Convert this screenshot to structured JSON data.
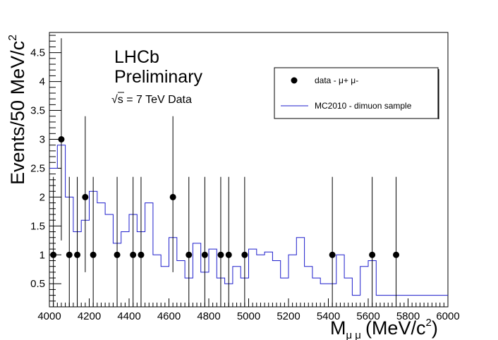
{
  "chart_data": {
    "type": "scatter",
    "title": "",
    "xlabel": "M_μμ (MeV/c²)",
    "xlabel_main": "M",
    "xlabel_sub": "μ μ",
    "xlabel_units": "(MeV/c",
    "xlabel_units_sup": "2",
    "xlabel_units_close": ")",
    "ylabel": "Events/50 MeV/c²",
    "ylabel_main": "Events/50 MeV/c",
    "ylabel_sup": "2",
    "xlim": [
      4000,
      6000
    ],
    "ylim": [
      0.1,
      4.85
    ],
    "xticks": [
      4000,
      4200,
      4400,
      4600,
      4800,
      5000,
      5200,
      5400,
      5600,
      5800,
      6000
    ],
    "yticks": [
      0.5,
      1,
      1.5,
      2,
      2.5,
      3,
      3.5,
      4,
      4.5
    ],
    "ytick_labels": [
      "0.5",
      "1",
      "1.5",
      "2",
      "2.5",
      "3",
      "3.5",
      "4",
      "4.5"
    ],
    "annotations": {
      "line1": "LHCb",
      "line2": "Preliminary",
      "energy_sqrt": "√",
      "energy_s": "s",
      "energy_text": " = 7 TeV Data"
    },
    "legend_position": "top-right",
    "series": [
      {
        "name": "data - μ+ μ-",
        "kind": "points_with_errors",
        "color": "#000000",
        "points": [
          {
            "x": 4020,
            "y": 1,
            "ylo": 0,
            "yhi": 2.35
          },
          {
            "x": 4060,
            "y": 3,
            "ylo": 1.25,
            "yhi": 4.75
          },
          {
            "x": 4100,
            "y": 1,
            "ylo": 0,
            "yhi": 2.35
          },
          {
            "x": 4140,
            "y": 1,
            "ylo": 0,
            "yhi": 2.35
          },
          {
            "x": 4180,
            "y": 2,
            "ylo": 0.7,
            "yhi": 3.4
          },
          {
            "x": 4220,
            "y": 1,
            "ylo": 0,
            "yhi": 2.35
          },
          {
            "x": 4340,
            "y": 1,
            "ylo": 0,
            "yhi": 2.35
          },
          {
            "x": 4420,
            "y": 1,
            "ylo": 0,
            "yhi": 2.35
          },
          {
            "x": 4460,
            "y": 1,
            "ylo": 0,
            "yhi": 2.35
          },
          {
            "x": 4620,
            "y": 2,
            "ylo": 0.7,
            "yhi": 3.4
          },
          {
            "x": 4700,
            "y": 1,
            "ylo": 0,
            "yhi": 2.35
          },
          {
            "x": 4780,
            "y": 1,
            "ylo": 0,
            "yhi": 2.35
          },
          {
            "x": 4860,
            "y": 1,
            "ylo": 0,
            "yhi": 2.35
          },
          {
            "x": 4900,
            "y": 1,
            "ylo": 0,
            "yhi": 2.35
          },
          {
            "x": 4980,
            "y": 1,
            "ylo": 0,
            "yhi": 2.35
          },
          {
            "x": 5420,
            "y": 1,
            "ylo": 0,
            "yhi": 2.35
          },
          {
            "x": 5620,
            "y": 1,
            "ylo": 0,
            "yhi": 2.35
          },
          {
            "x": 5740,
            "y": 1,
            "ylo": 0,
            "yhi": 2.35
          }
        ]
      },
      {
        "name": "MC2010 - dimuon sample",
        "kind": "step_histogram",
        "color": "#1f1fcc",
        "bin_width": 40,
        "bin_start": 4000,
        "values": [
          2.5,
          2.9,
          2.0,
          1.4,
          1.6,
          2.1,
          1.9,
          1.7,
          1.2,
          1.4,
          1.7,
          1.4,
          1.9,
          1.0,
          0.8,
          1.3,
          0.9,
          0.6,
          1.2,
          0.7,
          1.1,
          0.6,
          0.5,
          0.8,
          0.6,
          1.1,
          1.0,
          1.05,
          0.9,
          0.6,
          1.0,
          1.3,
          0.8,
          0.6,
          0.5,
          0.5,
          1.0,
          0.6,
          0.3,
          0.8,
          0.9,
          0.3,
          0.3,
          0.3,
          0.3,
          0.3,
          0.3,
          0.3,
          0.3,
          0.3
        ]
      }
    ]
  }
}
